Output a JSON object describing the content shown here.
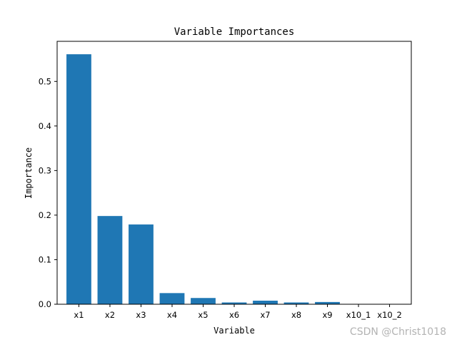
{
  "chart_data": {
    "type": "bar",
    "title": "Variable Importances",
    "xlabel": "Variable",
    "ylabel": "Importance",
    "categories": [
      "x1",
      "x2",
      "x3",
      "x4",
      "x5",
      "x6",
      "x7",
      "x8",
      "x9",
      "x10_1",
      "x10_2"
    ],
    "values": [
      0.561,
      0.198,
      0.179,
      0.025,
      0.014,
      0.004,
      0.008,
      0.004,
      0.005,
      0.0005,
      0.0003
    ],
    "ylim": [
      0,
      0.59
    ],
    "yticks": [
      0.0,
      0.1,
      0.2,
      0.3,
      0.4,
      0.5
    ],
    "ytick_labels": [
      "0.0",
      "0.1",
      "0.2",
      "0.3",
      "0.4",
      "0.5"
    ],
    "bar_color": "#1f77b4",
    "grid": false,
    "legend": "none"
  },
  "watermark": "CSDN @Christ1018"
}
